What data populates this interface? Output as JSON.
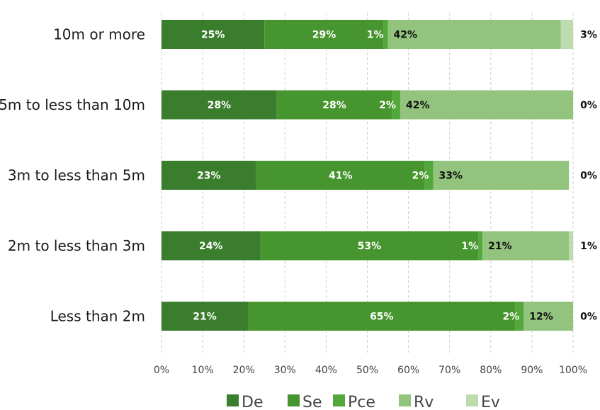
{
  "chart_data": {
    "type": "bar",
    "orientation": "horizontal",
    "stacked": true,
    "categories": [
      "10m or more",
      "5m to less than 10m",
      "3m to less than 5m",
      "2m to less than 3m",
      "Less than 2m"
    ],
    "series": [
      {
        "name": "De",
        "color": "#3a7d2c",
        "values": [
          25,
          28,
          23,
          24,
          21
        ],
        "labels": [
          "25%",
          "28%",
          "23%",
          "24%",
          "21%"
        ]
      },
      {
        "name": "Se",
        "color": "#47952f",
        "values": [
          29,
          28,
          41,
          53,
          65
        ],
        "labels": [
          "29%",
          "28%",
          "41%",
          "53%",
          "65%"
        ]
      },
      {
        "name": "Pce",
        "color": "#52a83a",
        "values": [
          1,
          2,
          2,
          1,
          2
        ],
        "labels": [
          "1%",
          "2%",
          "2%",
          "1%",
          "2%"
        ]
      },
      {
        "name": "Rv",
        "color": "#93c47d",
        "values": [
          42,
          42,
          33,
          21,
          12
        ],
        "labels": [
          "42%",
          "42%",
          "33%",
          "21%",
          "12%"
        ]
      },
      {
        "name": "Ev",
        "color": "#bcdcae",
        "values": [
          3,
          0,
          0,
          1,
          0
        ],
        "labels": [
          "3%",
          "0%",
          "0%",
          "1%",
          "0%"
        ]
      }
    ],
    "xlim": [
      0,
      100
    ],
    "xticks": [
      "0%",
      "10%",
      "20%",
      "30%",
      "40%",
      "50%",
      "60%",
      "70%",
      "80%",
      "90%",
      "100%"
    ],
    "grid": "vertical dashed",
    "legend": "bottom"
  }
}
